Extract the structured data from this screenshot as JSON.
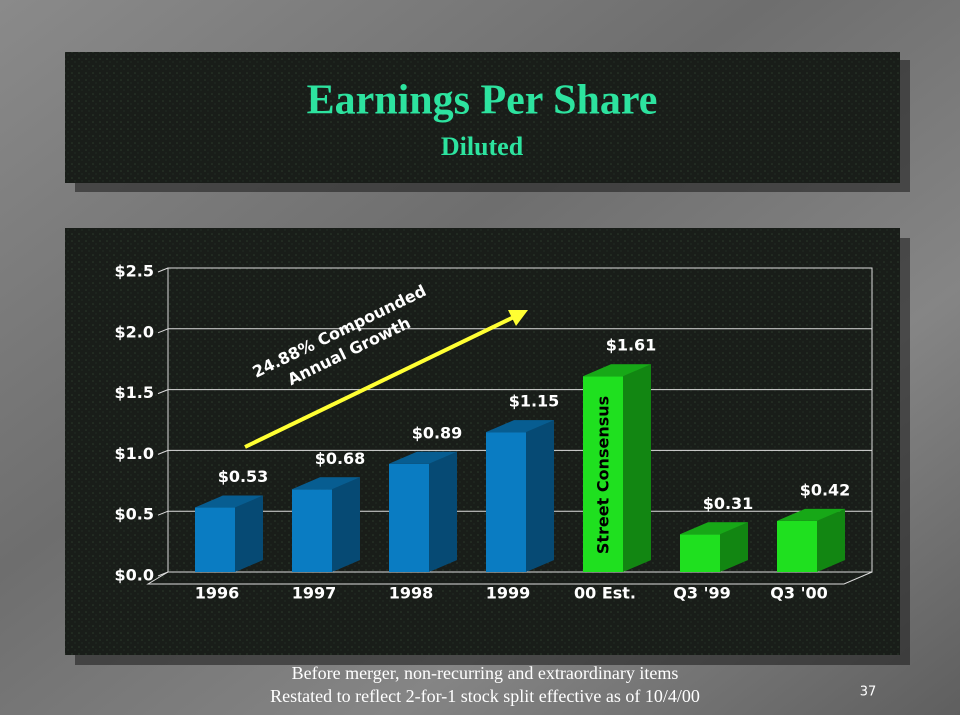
{
  "chart_data": {
    "type": "bar3d",
    "title": "Earnings Per Share",
    "subtitle": "Diluted",
    "categories": [
      "1996",
      "1997",
      "1998",
      "1999",
      "00 Est.",
      "Q3 '99",
      "Q3 '00"
    ],
    "values": [
      0.53,
      0.68,
      0.89,
      1.15,
      1.61,
      0.31,
      0.42
    ],
    "value_labels": [
      "$0.53",
      "$0.68",
      "$0.89",
      "$1.15",
      "$1.61",
      "$0.31",
      "$0.42"
    ],
    "colors": [
      "#0a7cc2",
      "#0a7cc2",
      "#0a7cc2",
      "#0a7cc2",
      "#1fe01f",
      "#1fe01f",
      "#1fe01f"
    ],
    "ylim": [
      0,
      2.5
    ],
    "yticks": [
      {
        "value": 0,
        "label": "$0.0"
      },
      {
        "value": 0.5,
        "label": "$0.5"
      },
      {
        "value": 1,
        "label": "$1.0"
      },
      {
        "value": 1.5,
        "label": "$1.5"
      },
      {
        "value": 2,
        "label": "$2.0"
      },
      {
        "value": 2.5,
        "label": "$2.5"
      }
    ],
    "grid": true,
    "annotations": [
      "24.88% Compounded",
      "Annual Growth",
      "Street Consensus"
    ],
    "footnotes": [
      "Before merger, non-recurring and extraordinary items",
      "Restated to reflect 2-for-1 stock split effective as of 10/4/00"
    ],
    "page_number": "37"
  }
}
